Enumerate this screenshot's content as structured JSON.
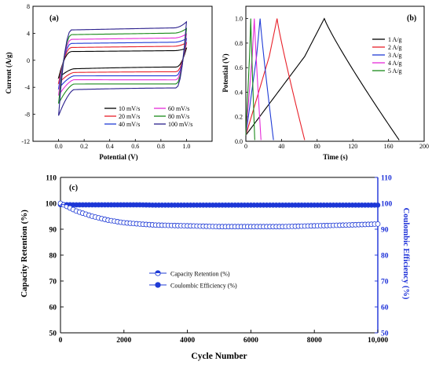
{
  "chart_data": [
    {
      "panel": "(a)",
      "type": "line",
      "xlabel": "Potential (V)",
      "ylabel": "Current (A/g)",
      "xlim": [
        -0.2,
        1.2
      ],
      "ylim": [
        -12,
        8
      ],
      "xticks": [
        "0.0",
        "0.2",
        "0.4",
        "0.6",
        "0.8",
        "1.0"
      ],
      "yticks": [
        "-12",
        "-8",
        "-4",
        "0",
        "4",
        "8"
      ],
      "legend_position": "bottom-right",
      "series": [
        {
          "name": "10 mV/s",
          "color": "#000000",
          "anodic_plateau": 1.3,
          "anodic_end": 1.8,
          "cathodic_plateau": -1.0,
          "cathodic_start": -2.6
        },
        {
          "name": "20 mV/s",
          "color": "#e8212a",
          "anodic_plateau": 1.9,
          "anodic_end": 2.6,
          "cathodic_plateau": -1.7,
          "cathodic_start": -3.4
        },
        {
          "name": "40 mV/s",
          "color": "#1f3bd6",
          "anodic_plateau": 2.5,
          "anodic_end": 3.2,
          "cathodic_plateau": -2.3,
          "cathodic_start": -4.2
        },
        {
          "name": "60 mV/s",
          "color": "#e52bd8",
          "anodic_plateau": 3.1,
          "anodic_end": 3.9,
          "cathodic_plateau": -2.9,
          "cathodic_start": -5.2
        },
        {
          "name": "80 mV/s",
          "color": "#1a8a1a",
          "anodic_plateau": 3.8,
          "anodic_end": 4.7,
          "cathodic_plateau": -3.5,
          "cathodic_start": -6.4
        },
        {
          "name": "100 mV/s",
          "color": "#2a1f8c",
          "anodic_plateau": 4.5,
          "anodic_end": 5.7,
          "cathodic_plateau": -4.1,
          "cathodic_start": -8.2
        }
      ]
    },
    {
      "panel": "(b)",
      "type": "line",
      "xlabel": "Time (s)",
      "ylabel": "Potential (V)",
      "xlim": [
        0,
        200
      ],
      "ylim": [
        0,
        1.1
      ],
      "xticks": [
        "0",
        "40",
        "80",
        "120",
        "160",
        "200"
      ],
      "yticks": [
        "0.0",
        "0.2",
        "0.4",
        "0.6",
        "0.8",
        "1.0"
      ],
      "legend_position": "top-right",
      "series": [
        {
          "name": "1 A/g",
          "color": "#000000",
          "t_charge": 88,
          "t_end": 172
        },
        {
          "name": "2 A/g",
          "color": "#e8212a",
          "t_charge": 35,
          "t_end": 66
        },
        {
          "name": "3 A/g",
          "color": "#1f3bd6",
          "t_charge": 16,
          "t_end": 31
        },
        {
          "name": "4 A/g",
          "color": "#e52bd8",
          "t_charge": 9.5,
          "t_end": 17
        },
        {
          "name": "5 A/g",
          "color": "#1a8a1a",
          "t_charge": 5.5,
          "t_end": 10
        }
      ]
    },
    {
      "panel": "(c)",
      "type": "scatter",
      "xlabel": "Cycle Number",
      "ylabel": "Capacity Retention (%)",
      "ylabel_right": "Coulombic Efficiency (%)",
      "xlim": [
        0,
        10000
      ],
      "ylim": [
        50,
        110
      ],
      "xticks": [
        "0",
        "2000",
        "4000",
        "6000",
        "8000",
        "10,000"
      ],
      "yticks": [
        "50",
        "60",
        "70",
        "80",
        "90",
        "100",
        "110"
      ],
      "legend_position": "bottom-left",
      "series": [
        {
          "name": "Capacity Retention (%)",
          "color": "#1f3bd6",
          "marker": "half-filled circle",
          "x": [
            0,
            500,
            1000,
            1500,
            2000,
            2500,
            3000,
            4000,
            5000,
            6000,
            7000,
            8000,
            9000,
            10000
          ],
          "y": [
            100,
            97.0,
            95.0,
            93.5,
            92.5,
            92.0,
            91.6,
            91.3,
            91.0,
            91.0,
            91.0,
            91.3,
            91.6,
            92.0
          ]
        },
        {
          "name": "Coulombic Efficiency (%)",
          "color": "#1f3bd6",
          "marker": "filled circle",
          "x": [
            0,
            500,
            1000,
            1500,
            2000,
            2500,
            3000,
            4000,
            5000,
            6000,
            7000,
            8000,
            9000,
            10000
          ],
          "y": [
            99.5,
            99.4,
            99.4,
            99.4,
            99.4,
            99.4,
            99.3,
            99.3,
            99.3,
            99.3,
            99.3,
            99.3,
            99.3,
            99.3
          ]
        }
      ]
    }
  ]
}
